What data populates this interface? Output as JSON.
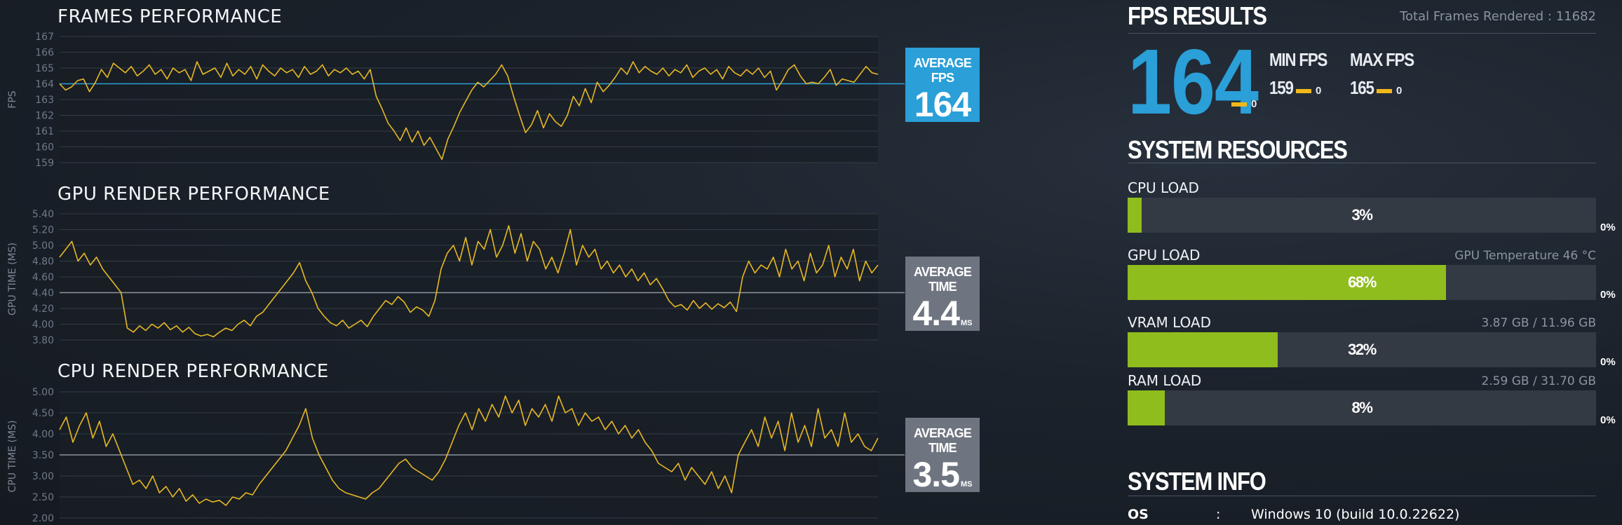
{
  "charts": {
    "fps": {
      "title": "FRAMES PERFORMANCE",
      "ylabel": "FPS",
      "ticks": [
        "167",
        "166",
        "165",
        "164",
        "163",
        "162",
        "161",
        "160",
        "159"
      ],
      "avg_label": "AVERAGE FPS",
      "avg_value": "164",
      "avg_unit": ""
    },
    "gpu": {
      "title": "GPU RENDER PERFORMANCE",
      "ylabel": "GPU TIME (MS)",
      "ticks": [
        "5.40",
        "5.20",
        "5.00",
        "4.80",
        "4.60",
        "4.40",
        "4.20",
        "4.00",
        "3.80"
      ],
      "avg_label": "AVERAGE TIME",
      "avg_value": "4.4",
      "avg_unit": "MS"
    },
    "cpu": {
      "title": "CPU RENDER PERFORMANCE",
      "ylabel": "CPU TIME (MS)",
      "ticks": [
        "5.00",
        "4.50",
        "4.00",
        "3.50",
        "3.00",
        "2.50",
        "2.00"
      ],
      "avg_label": "AVERAGE TIME",
      "avg_value": "3.5",
      "avg_unit": "MS"
    }
  },
  "fps_results": {
    "title": "FPS RESULTS",
    "total_frames": "Total Frames Rendered : 11682",
    "average": "164",
    "average_delta": "0",
    "min_label": "MIN FPS",
    "min_value": "159",
    "min_delta": "0",
    "max_label": "MAX FPS",
    "max_value": "165",
    "max_delta": "0"
  },
  "system_resources": {
    "title": "SYSTEM RESOURCES",
    "cpu": {
      "label": "CPU LOAD",
      "info": "",
      "percent_text": "3%",
      "fill": 0.03,
      "zero": "0%"
    },
    "gpu": {
      "label": "GPU LOAD",
      "info": "GPU Temperature 46 °C",
      "percent_text": "68%",
      "fill": 0.68,
      "zero": "0%"
    },
    "vram": {
      "label": "VRAM LOAD",
      "info": "3.87 GB / 11.96 GB",
      "percent_text": "32%",
      "fill": 0.32,
      "zero": "0%"
    },
    "ram": {
      "label": "RAM LOAD",
      "info": "2.59 GB / 31.70 GB",
      "percent_text": "8%",
      "fill": 0.08,
      "zero": "0%"
    }
  },
  "system_info": {
    "title": "SYSTEM INFO",
    "os_label": "OS",
    "separator": ":",
    "os_value": "Windows 10 (build 10.0.22622)"
  },
  "colors": {
    "fps_accent": "#2a9fd8",
    "time_box": "#6f7580",
    "line": "#e7b825",
    "bar_fill": "#8fbd1d"
  },
  "chart_data": [
    {
      "type": "line",
      "title": "FRAMES PERFORMANCE",
      "ylabel": "FPS",
      "ylim": [
        159,
        167
      ],
      "average": 164,
      "values": [
        164.0,
        163.6,
        163.8,
        164.2,
        164.3,
        163.5,
        164.1,
        164.9,
        164.4,
        165.3,
        165.0,
        164.7,
        165.1,
        164.5,
        164.8,
        165.2,
        164.6,
        164.9,
        164.3,
        165.0,
        164.7,
        164.9,
        164.2,
        165.4,
        164.6,
        164.8,
        165.0,
        164.4,
        165.3,
        164.5,
        164.9,
        164.6,
        165.1,
        164.3,
        165.2,
        164.8,
        164.5,
        165.0,
        164.7,
        164.9,
        164.4,
        165.1,
        164.6,
        164.8,
        165.2,
        164.5,
        164.9,
        164.7,
        165.0,
        164.6,
        164.8,
        164.3,
        164.9,
        163.2,
        162.4,
        161.5,
        161.0,
        160.4,
        161.2,
        160.3,
        161.0,
        160.1,
        160.6,
        159.9,
        159.2,
        160.5,
        161.3,
        162.2,
        162.9,
        163.6,
        164.1,
        163.8,
        164.2,
        164.6,
        165.2,
        164.5,
        163.2,
        162.0,
        160.9,
        161.4,
        162.3,
        161.2,
        162.1,
        161.6,
        161.3,
        162.0,
        163.2,
        162.6,
        163.7,
        162.8,
        164.1,
        163.5,
        163.9,
        164.4,
        165.0,
        164.6,
        165.4,
        164.7,
        165.1,
        164.8,
        164.6,
        165.0,
        164.5,
        164.9,
        164.7,
        165.2,
        164.4,
        164.8,
        165.0,
        164.6,
        164.9,
        164.3,
        165.1,
        164.7,
        164.5,
        164.9,
        164.6,
        165.0,
        164.4,
        164.8,
        163.6,
        164.2,
        164.9,
        165.2,
        164.5,
        164.0,
        164.1,
        164.0,
        164.4,
        164.9,
        163.9,
        164.3,
        164.2,
        164.1,
        164.6,
        165.1,
        164.7,
        164.6
      ]
    },
    {
      "type": "line",
      "title": "GPU RENDER PERFORMANCE",
      "ylabel": "GPU TIME (MS)",
      "ylim": [
        3.8,
        5.4
      ],
      "average": 4.4,
      "values": [
        4.85,
        4.95,
        5.05,
        4.8,
        4.9,
        4.75,
        4.85,
        4.7,
        4.6,
        4.5,
        4.4,
        3.95,
        3.9,
        3.98,
        3.92,
        4.0,
        3.95,
        4.02,
        3.93,
        3.98,
        3.9,
        3.96,
        3.88,
        3.85,
        3.87,
        3.84,
        3.9,
        3.95,
        3.92,
        4.0,
        4.05,
        3.98,
        4.1,
        4.15,
        4.25,
        4.35,
        4.45,
        4.55,
        4.65,
        4.78,
        4.55,
        4.4,
        4.2,
        4.1,
        4.02,
        3.98,
        4.05,
        3.95,
        4.0,
        4.05,
        3.97,
        4.1,
        4.2,
        4.3,
        4.25,
        4.35,
        4.28,
        4.15,
        4.22,
        4.18,
        4.1,
        4.3,
        4.7,
        4.9,
        5.0,
        4.8,
        5.1,
        4.75,
        5.05,
        4.95,
        5.2,
        4.85,
        5.0,
        5.25,
        4.9,
        5.15,
        4.8,
        5.05,
        4.95,
        4.7,
        4.85,
        4.65,
        4.9,
        5.2,
        4.75,
        5.0,
        4.85,
        4.95,
        4.7,
        4.8,
        4.65,
        4.75,
        4.6,
        4.7,
        4.55,
        4.65,
        4.5,
        4.58,
        4.45,
        4.3,
        4.22,
        4.25,
        4.18,
        4.3,
        4.2,
        4.27,
        4.19,
        4.26,
        4.21,
        4.28,
        4.16,
        4.6,
        4.8,
        4.65,
        4.75,
        4.7,
        4.85,
        4.6,
        4.95,
        4.7,
        4.8,
        4.55,
        4.9,
        4.65,
        4.75,
        5.0,
        4.6,
        4.85,
        4.7,
        4.95,
        4.55,
        4.8,
        4.65,
        4.75
      ]
    },
    {
      "type": "line",
      "title": "CPU RENDER PERFORMANCE",
      "ylabel": "CPU TIME (MS)",
      "ylim": [
        2.0,
        5.0
      ],
      "average": 3.5,
      "values": [
        4.1,
        4.4,
        3.8,
        4.2,
        4.5,
        3.9,
        4.3,
        3.7,
        4.0,
        3.6,
        3.2,
        2.8,
        2.9,
        2.7,
        3.0,
        2.6,
        2.75,
        2.5,
        2.7,
        2.4,
        2.55,
        2.35,
        2.45,
        2.38,
        2.42,
        2.3,
        2.5,
        2.45,
        2.6,
        2.55,
        2.8,
        3.0,
        3.2,
        3.4,
        3.6,
        3.9,
        4.2,
        4.6,
        3.9,
        3.5,
        3.2,
        2.9,
        2.7,
        2.6,
        2.55,
        2.5,
        2.45,
        2.6,
        2.7,
        2.9,
        3.1,
        3.3,
        3.4,
        3.2,
        3.1,
        3.0,
        2.9,
        3.1,
        3.4,
        3.8,
        4.2,
        4.5,
        4.1,
        4.6,
        4.3,
        4.7,
        4.4,
        4.9,
        4.5,
        4.8,
        4.2,
        4.6,
        4.4,
        4.7,
        4.3,
        4.9,
        4.5,
        4.6,
        4.2,
        4.5,
        4.3,
        4.4,
        4.1,
        4.3,
        4.0,
        4.2,
        3.9,
        4.1,
        3.8,
        3.6,
        3.3,
        3.2,
        3.1,
        3.3,
        2.9,
        3.2,
        3.0,
        2.8,
        3.1,
        2.7,
        3.0,
        2.6,
        3.5,
        3.8,
        4.1,
        3.7,
        4.4,
        3.9,
        4.3,
        3.6,
        4.5,
        3.8,
        4.2,
        3.7,
        4.6,
        3.9,
        4.1,
        3.7,
        4.5,
        3.8,
        4.0,
        3.7,
        3.6,
        3.9
      ]
    }
  ]
}
